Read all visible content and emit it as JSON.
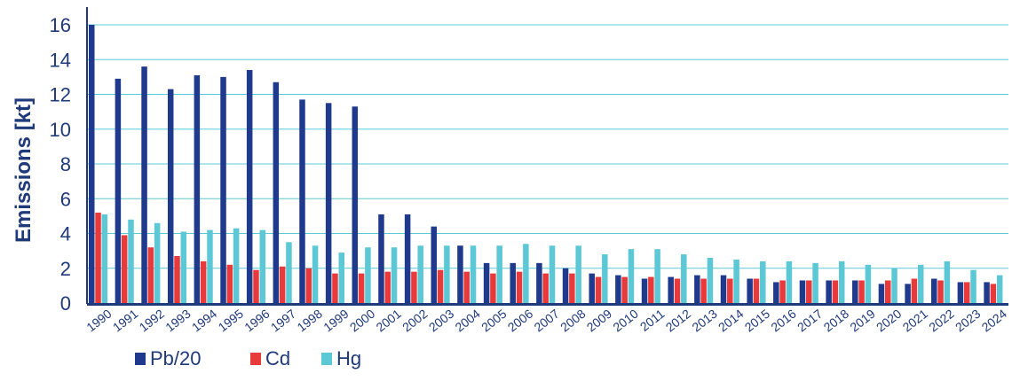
{
  "chart_data": {
    "type": "bar",
    "title": "",
    "xlabel": "",
    "ylabel": "Emissions [kt]",
    "ylim": [
      0,
      16
    ],
    "yticks": [
      0,
      2,
      4,
      6,
      8,
      10,
      12,
      14,
      16
    ],
    "grid": true,
    "legend_position": "bottom-left",
    "colors": {
      "Pb/20": "#1f3a8c",
      "Cd": "#e83a3a",
      "Hg": "#5cc8d6",
      "grid": "#5cc8d6",
      "axis": "#1f3a7a"
    },
    "categories": [
      "1990",
      "1991",
      "1992",
      "1993",
      "1994",
      "1995",
      "1996",
      "1997",
      "1998",
      "1999",
      "2000",
      "2001",
      "2002",
      "2003",
      "2004",
      "2005",
      "2006",
      "2007",
      "2008",
      "2009",
      "2010",
      "2011",
      "2012",
      "2013",
      "2014",
      "2015",
      "2016",
      "2017",
      "2018",
      "2019",
      "2020",
      "2021",
      "2022",
      "2023",
      "2024"
    ],
    "series": [
      {
        "name": "Pb/20",
        "values": [
          16.0,
          12.9,
          13.6,
          12.3,
          13.1,
          13.0,
          13.4,
          12.7,
          11.7,
          11.5,
          11.3,
          5.1,
          5.1,
          4.4,
          3.3,
          2.3,
          2.3,
          2.3,
          2.0,
          1.7,
          1.6,
          1.4,
          1.5,
          1.6,
          1.6,
          1.4,
          1.2,
          1.3,
          1.3,
          1.3,
          1.1,
          1.1,
          1.4,
          1.2,
          1.2
        ]
      },
      {
        "name": "Cd",
        "values": [
          5.2,
          3.9,
          3.2,
          2.7,
          2.4,
          2.2,
          1.9,
          2.1,
          2.0,
          1.7,
          1.7,
          1.8,
          1.8,
          1.9,
          1.8,
          1.7,
          1.8,
          1.7,
          1.7,
          1.5,
          1.5,
          1.5,
          1.4,
          1.4,
          1.4,
          1.4,
          1.3,
          1.3,
          1.3,
          1.3,
          1.3,
          1.4,
          1.3,
          1.2,
          1.1
        ]
      },
      {
        "name": "Hg",
        "values": [
          5.1,
          4.8,
          4.6,
          4.1,
          4.2,
          4.3,
          4.2,
          3.5,
          3.3,
          2.9,
          3.2,
          3.2,
          3.3,
          3.3,
          3.3,
          3.3,
          3.4,
          3.3,
          3.3,
          2.8,
          3.1,
          3.1,
          2.8,
          2.6,
          2.5,
          2.4,
          2.4,
          2.3,
          2.4,
          2.2,
          2.0,
          2.2,
          2.4,
          1.9,
          1.6
        ]
      }
    ]
  }
}
